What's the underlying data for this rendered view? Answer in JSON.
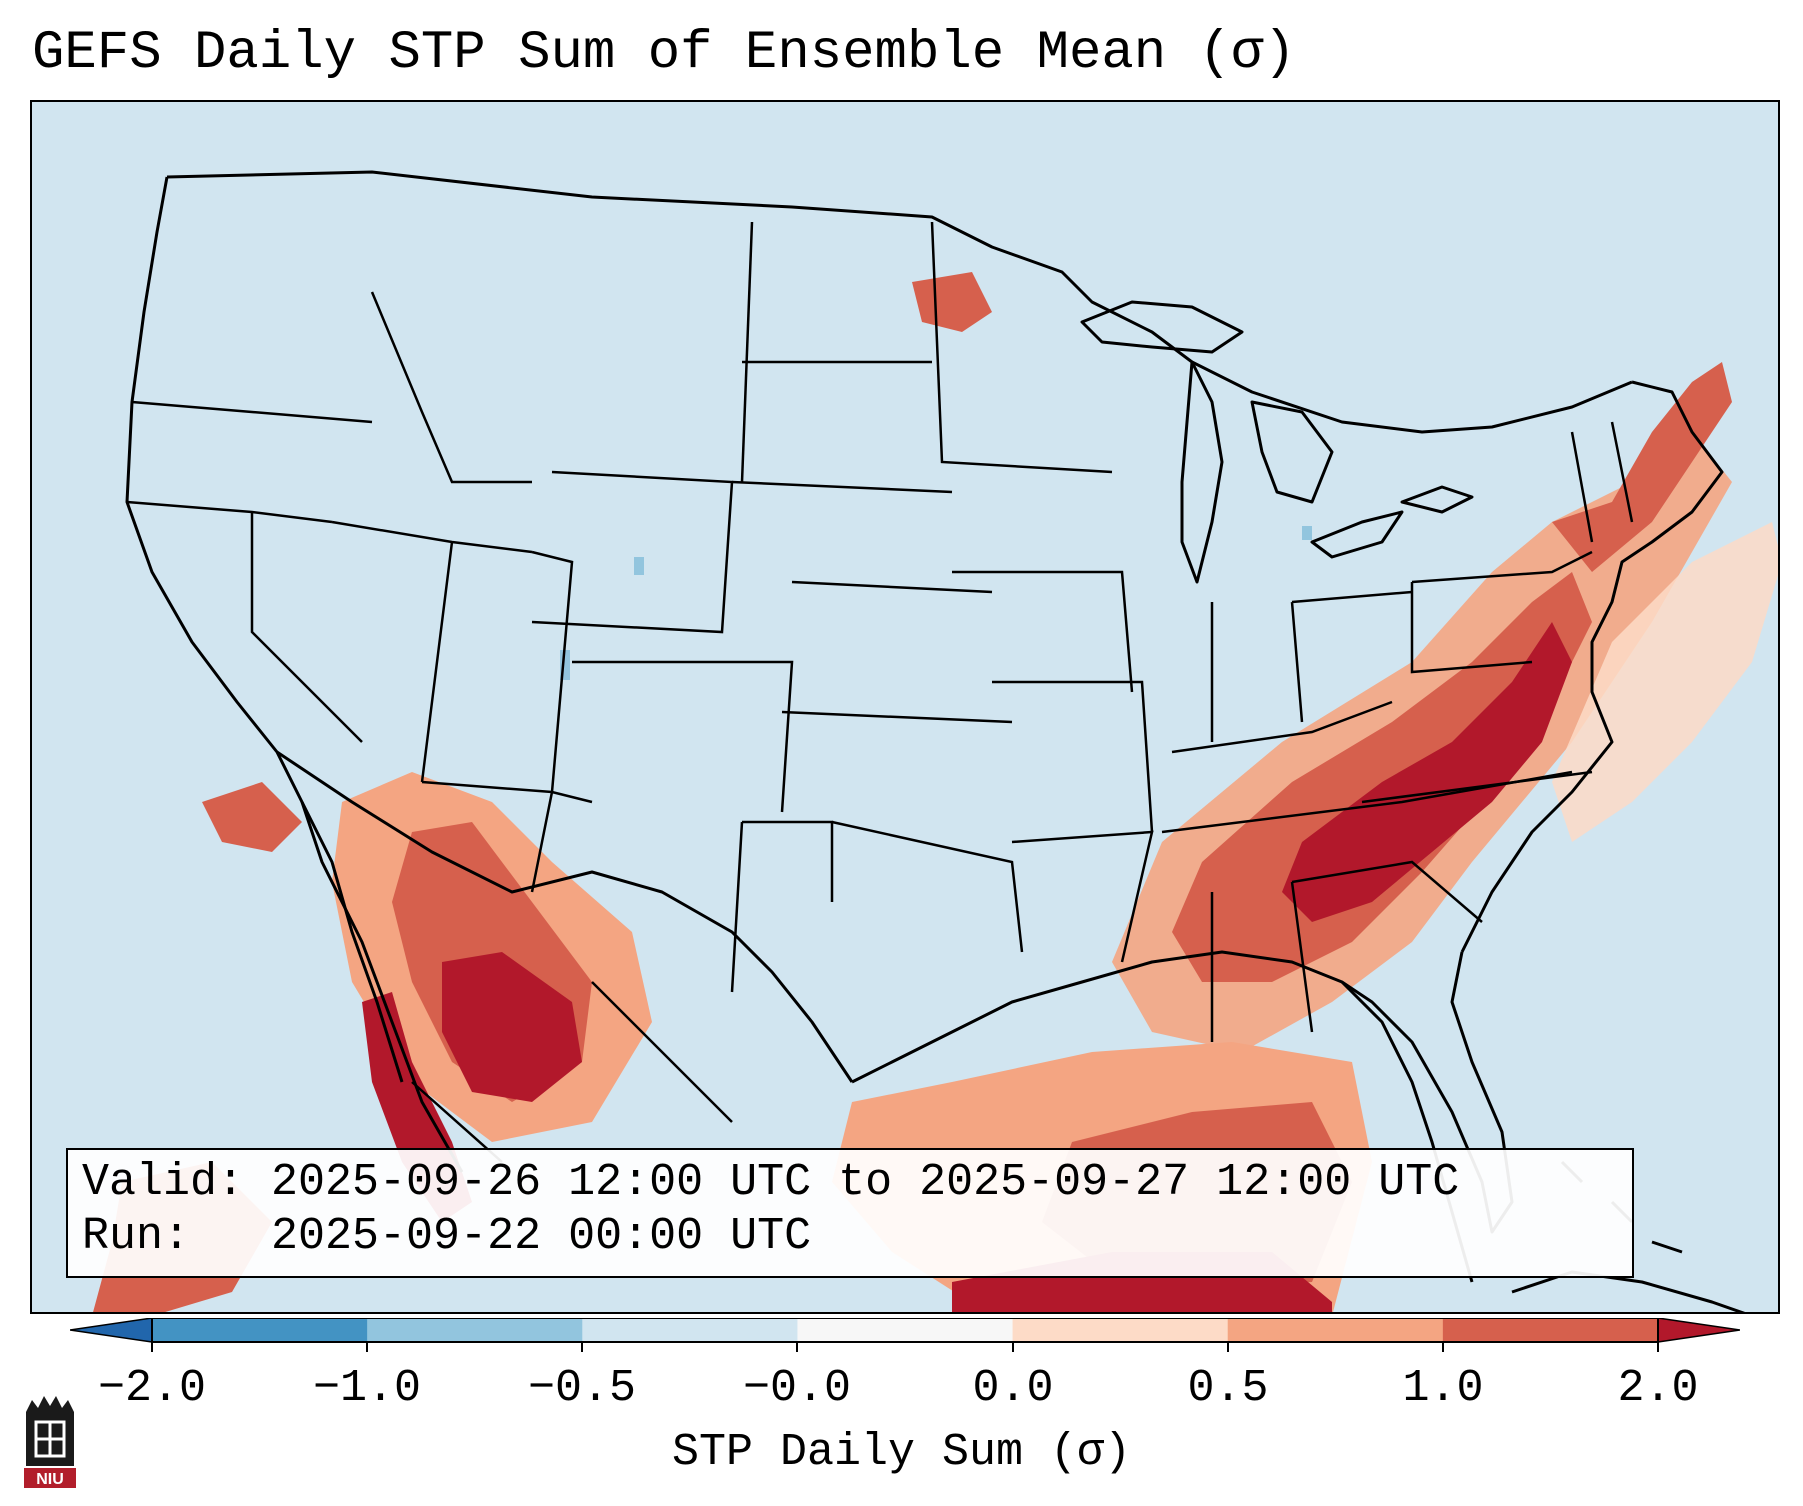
{
  "title": "GEFS Daily STP Sum of Ensemble Mean (σ)",
  "info": {
    "valid": "Valid: 2025-09-26 12:00 UTC to 2025-09-27 12:00 UTC",
    "run": "Run:   2025-09-22 00:00 UTC"
  },
  "colorbar": {
    "label": "STP Daily Sum (σ)",
    "ticks": [
      "−2.0",
      "−1.0",
      "−0.5",
      "−0.0",
      "0.0",
      "0.5",
      "1.0",
      "2.0"
    ],
    "bin_colors": [
      "#4393c3",
      "#92c5de",
      "#d1e5f0",
      "#f7f7f7",
      "#fddbc7",
      "#f4a582",
      "#d6604d"
    ],
    "under_color": "#2166ac",
    "over_color": "#b2182b"
  },
  "map": {
    "background_color": "#d1e5f0",
    "feature": "STP anomaly hotspots: Southeastern US, Mid-Atlantic, Arizona/Sonora, Gulf of Mexico, Baja California"
  },
  "logo": {
    "text": "NIU",
    "color": "#b21e2b"
  }
}
